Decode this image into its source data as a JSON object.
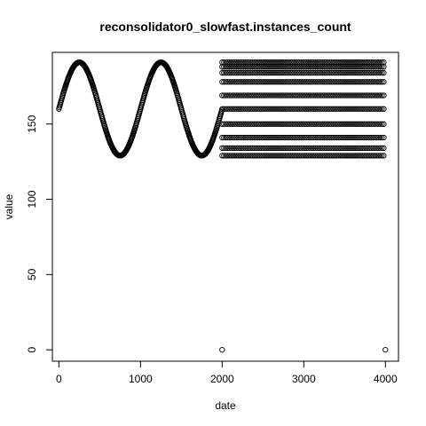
{
  "chart_data": {
    "type": "scatter",
    "title": "reconsolidator0_slowfast.instances_count",
    "xlabel": "date",
    "ylabel": "value",
    "xlim": [
      -80,
      4160
    ],
    "ylim": [
      -7.6,
      197.6
    ],
    "x_ticks": [
      0,
      1000,
      2000,
      3000,
      4000
    ],
    "y_ticks": [
      0,
      50,
      100,
      150
    ],
    "x_tick_labels": [
      "0",
      "1000",
      "2000",
      "3000",
      "4000"
    ],
    "y_tick_labels": [
      "0",
      "50",
      "100",
      "150"
    ],
    "marker": "open-circle",
    "grid": false,
    "series": [
      {
        "segments": [
          {
            "kind": "sine",
            "x_start": 0,
            "x_end": 1999,
            "x_step": 5,
            "y_center": 160,
            "y_amplitude": 31,
            "period": 1000
          },
          {
            "kind": "banded",
            "x_start": 2000,
            "x_end": 4000,
            "x_step": 22,
            "y_levels": [
              129,
              134,
              141,
              150,
              160,
              169,
              178,
              184,
              188,
              191
            ]
          }
        ],
        "outliers": [
          {
            "x": 2000,
            "y": 0
          },
          {
            "x": 4000,
            "y": 0
          }
        ]
      }
    ]
  },
  "colors": {
    "points": "#000000",
    "axes": "#000000",
    "background": "#ffffff"
  }
}
